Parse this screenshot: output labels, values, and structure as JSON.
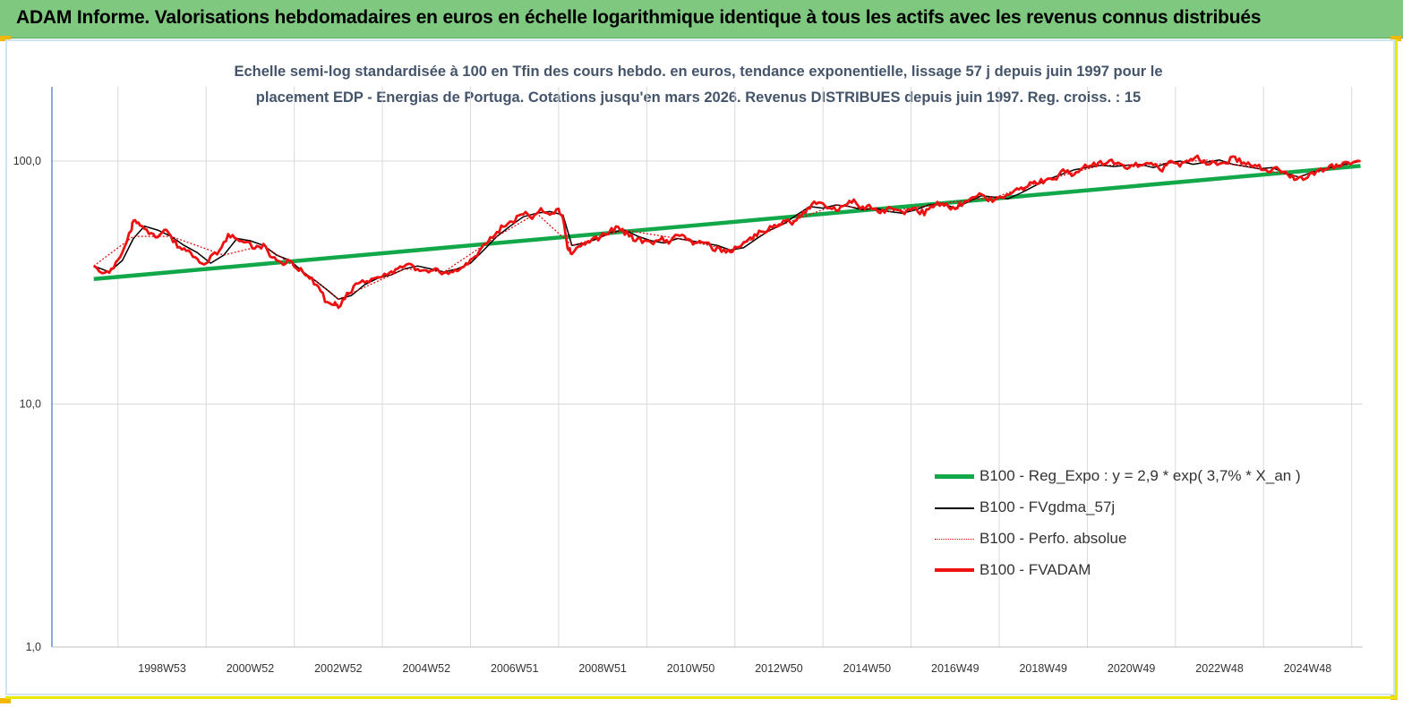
{
  "header": {
    "title": "ADAM Informe. Valorisations hebdomadaires en euros en échelle logarithmique identique à tous les actifs avec les revenus connus distribués"
  },
  "colors": {
    "header_bg": "#7ec97f",
    "regression": "#12a84a",
    "smoothed": "#000000",
    "perfo": "#e00000",
    "fvadam": "#ee1111",
    "title_text": "#44546a"
  },
  "chart_data": {
    "type": "line",
    "title_line1": "Echelle semi-log standardisée à 100 en Tfin des cours hebdo. en euros, tendance exponentielle, lissage 57 j depuis juin 1997 pour le",
    "title_line2": "placement EDP - Energias de Portuga. Cotations jusqu'en mars 2026. Revenus DISTRIBUES depuis juin 1997. Reg. croiss. : 15",
    "y_scale": "log",
    "ylim": [
      1,
      100
    ],
    "y_tick_labels": [
      "100,0",
      "10,0",
      "1,0"
    ],
    "y_tick_values": [
      100,
      10,
      1
    ],
    "x_tick_labels": [
      "1998W53",
      "2000W52",
      "2002W52",
      "2004W52",
      "2006W51",
      "2008W51",
      "2010W50",
      "2012W50",
      "2014W50",
      "2016W49",
      "2018W49",
      "2020W49",
      "2022W48",
      "2024W48"
    ],
    "x_tick_values": [
      1999.0,
      2001.0,
      2003.0,
      2005.0,
      2007.0,
      2009.0,
      2011.0,
      2013.0,
      2015.0,
      2017.0,
      2019.0,
      2021.0,
      2023.0,
      2025.0
    ],
    "xlim": [
      1996.5,
      2026.25
    ],
    "grid": "vertical",
    "legend_position": "bottom-right",
    "series": [
      {
        "name": "B100 - Reg_Expo : y = 2,9 * exp( 3,7% *  X_an )",
        "color": "#12a84a",
        "style": "solid",
        "x": [
          1997.45,
          2026.2
        ],
        "y": [
          32.7,
          95.5
        ]
      },
      {
        "name": "B100 - FVgdma_57j",
        "color": "#000000",
        "style": "solid",
        "x": [
          1997.45,
          1997.8,
          1998.1,
          1998.35,
          1998.6,
          1998.9,
          1999.2,
          1999.5,
          1999.8,
          2000.1,
          2000.4,
          2000.7,
          2001.0,
          2001.3,
          2001.6,
          2001.9,
          2002.2,
          2002.5,
          2002.8,
          2003.0,
          2003.3,
          2003.6,
          2003.9,
          2004.2,
          2004.5,
          2004.8,
          2005.1,
          2005.4,
          2005.7,
          2006.0,
          2006.3,
          2006.6,
          2006.9,
          2007.2,
          2007.5,
          2007.8,
          2008.1,
          2008.3,
          2008.6,
          2008.9,
          2009.2,
          2009.5,
          2009.8,
          2010.1,
          2010.4,
          2010.7,
          2011.0,
          2011.3,
          2011.6,
          2011.9,
          2012.2,
          2012.5,
          2012.8,
          2013.1,
          2013.4,
          2013.7,
          2014.0,
          2014.3,
          2014.6,
          2014.9,
          2015.2,
          2015.5,
          2015.8,
          2016.1,
          2016.4,
          2016.7,
          2017.0,
          2017.3,
          2017.6,
          2017.9,
          2018.2,
          2018.5,
          2018.8,
          2019.1,
          2019.4,
          2019.7,
          2020.0,
          2020.3,
          2020.6,
          2020.9,
          2021.2,
          2021.5,
          2021.8,
          2022.1,
          2022.4,
          2022.7,
          2023.0,
          2023.3,
          2023.6,
          2023.9,
          2024.2,
          2024.5,
          2024.8,
          2025.1,
          2025.4,
          2025.7,
          2026.0,
          2026.2
        ],
        "y": [
          37,
          35,
          39,
          48,
          54,
          52,
          49,
          45,
          42,
          38,
          41,
          48,
          47,
          45,
          41,
          39,
          35,
          32,
          29,
          27,
          28,
          31,
          33,
          34,
          36,
          37,
          36,
          35,
          36,
          38,
          43,
          49,
          54,
          59,
          61,
          62,
          60,
          45,
          46,
          48,
          51,
          52,
          49,
          47,
          46,
          48,
          47,
          46,
          45,
          43,
          44,
          48,
          52,
          55,
          60,
          65,
          64,
          66,
          65,
          63,
          64,
          62,
          61,
          63,
          66,
          67,
          64,
          68,
          72,
          71,
          70,
          74,
          79,
          84,
          88,
          92,
          94,
          96,
          95,
          96,
          97,
          94,
          98,
          100,
          97,
          99,
          101,
          97,
          95,
          93,
          94,
          89,
          86,
          90,
          93,
          96,
          98,
          100
        ]
      },
      {
        "name": "B100 - Perfo. absolue",
        "color": "#e00000",
        "style": "dotted",
        "x": [
          1997.45,
          1998.35,
          1999.2,
          2000.4,
          2001.3,
          2002.5,
          2003.0,
          2004.5,
          2005.4,
          2006.6,
          2007.5,
          2008.3,
          2009.5,
          2010.7,
          2011.9,
          2013.1,
          2014.3,
          2015.5,
          2016.7,
          2017.9,
          2019.1,
          2020.3,
          2021.5,
          2022.7,
          2023.9,
          2024.8,
          2026.2
        ],
        "y": [
          37,
          49,
          49,
          41,
          45,
          32,
          27,
          36,
          35,
          49,
          61,
          45,
          52,
          48,
          43,
          55,
          66,
          62,
          67,
          71,
          84,
          96,
          97,
          101,
          93,
          86,
          100
        ]
      },
      {
        "name": "B100 - FVADAM",
        "color": "#ee1111",
        "style": "solid",
        "x": [
          1997.45,
          1997.7,
          1997.9,
          1998.1,
          1998.3,
          1998.35,
          1998.5,
          1998.7,
          1998.9,
          1999.1,
          1999.3,
          1999.5,
          1999.7,
          1999.9,
          2000.1,
          2000.3,
          2000.5,
          2000.7,
          2000.9,
          2001.1,
          2001.3,
          2001.5,
          2001.7,
          2001.9,
          2002.1,
          2002.3,
          2002.5,
          2002.7,
          2002.9,
          2003.0,
          2003.2,
          2003.4,
          2003.6,
          2003.8,
          2004.0,
          2004.2,
          2004.4,
          2004.6,
          2004.8,
          2005.0,
          2005.2,
          2005.4,
          2005.6,
          2005.8,
          2006.0,
          2006.2,
          2006.4,
          2006.6,
          2006.8,
          2007.0,
          2007.2,
          2007.4,
          2007.6,
          2007.8,
          2008.0,
          2008.1,
          2008.2,
          2008.3,
          2008.5,
          2008.7,
          2008.9,
          2009.1,
          2009.3,
          2009.5,
          2009.7,
          2009.9,
          2010.1,
          2010.3,
          2010.5,
          2010.7,
          2010.9,
          2011.1,
          2011.3,
          2011.5,
          2011.7,
          2011.9,
          2012.1,
          2012.3,
          2012.5,
          2012.7,
          2012.9,
          2013.1,
          2013.3,
          2013.5,
          2013.7,
          2013.9,
          2014.1,
          2014.3,
          2014.5,
          2014.7,
          2014.9,
          2015.1,
          2015.3,
          2015.5,
          2015.7,
          2015.9,
          2016.1,
          2016.3,
          2016.5,
          2016.7,
          2016.9,
          2017.1,
          2017.3,
          2017.5,
          2017.7,
          2017.9,
          2018.1,
          2018.3,
          2018.5,
          2018.7,
          2018.9,
          2019.1,
          2019.3,
          2019.5,
          2019.7,
          2019.9,
          2020.1,
          2020.3,
          2020.5,
          2020.7,
          2020.9,
          2021.1,
          2021.3,
          2021.5,
          2021.7,
          2021.9,
          2022.1,
          2022.3,
          2022.5,
          2022.7,
          2022.9,
          2023.1,
          2023.3,
          2023.5,
          2023.7,
          2023.9,
          2024.1,
          2024.3,
          2024.5,
          2024.7,
          2024.9,
          2025.1,
          2025.3,
          2025.5,
          2025.7,
          2025.9,
          2026.2
        ],
        "y": [
          38,
          34,
          37,
          42,
          52,
          57,
          54,
          51,
          49,
          52,
          46,
          43,
          41,
          37,
          40,
          43,
          49,
          48,
          46,
          44,
          45,
          40,
          38,
          39,
          36,
          34,
          31,
          27,
          26,
          25,
          28,
          31,
          32,
          33,
          34,
          35,
          36,
          37,
          36,
          35,
          36,
          34,
          35,
          37,
          39,
          42,
          47,
          51,
          55,
          57,
          61,
          59,
          63,
          60,
          64,
          57,
          44,
          42,
          45,
          47,
          48,
          51,
          53,
          51,
          48,
          47,
          46,
          48,
          46,
          50,
          48,
          46,
          47,
          44,
          43,
          42,
          45,
          47,
          50,
          52,
          54,
          57,
          56,
          60,
          65,
          68,
          64,
          63,
          66,
          68,
          64,
          65,
          61,
          64,
          62,
          62,
          63,
          61,
          66,
          67,
          64,
          66,
          70,
          73,
          70,
          68,
          71,
          74,
          77,
          80,
          82,
          84,
          86,
          92,
          88,
          94,
          96,
          98,
          101,
          96,
          94,
          97,
          95,
          98,
          93,
          99,
          96,
          101,
          103,
          98,
          99,
          97,
          103,
          100,
          96,
          95,
          92,
          93,
          89,
          85,
          84,
          89,
          92,
          94,
          97,
          98,
          100
        ]
      }
    ]
  }
}
